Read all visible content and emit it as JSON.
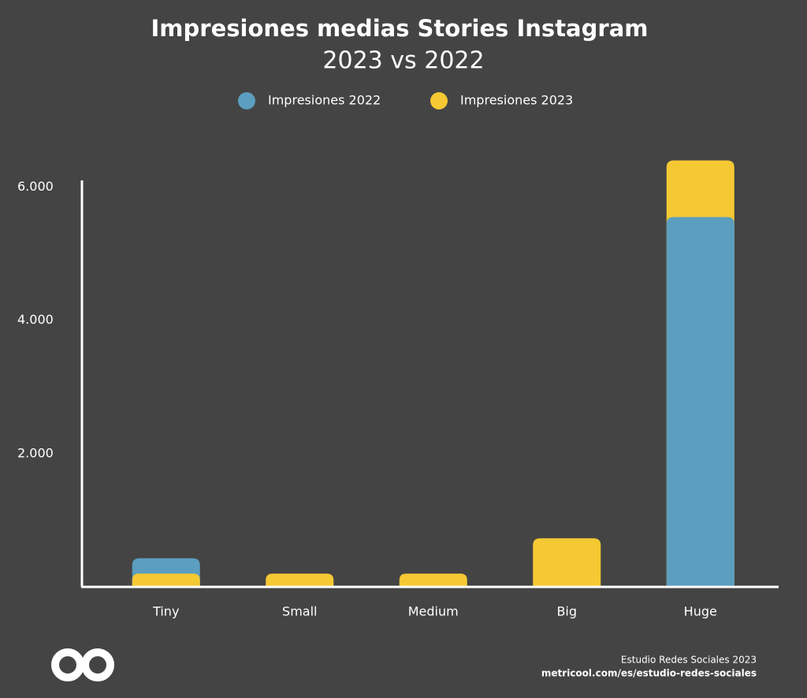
{
  "chart_data": {
    "type": "bar",
    "title": "Impresiones medias Stories Instagram",
    "subtitle": "2023 vs 2022",
    "categories": [
      "Tiny",
      "Small",
      "Medium",
      "Big",
      "Huge"
    ],
    "series": [
      {
        "name": "Impresiones 2022",
        "color": "#5b9ebf",
        "values": [
          430,
          null,
          null,
          null,
          5550
        ]
      },
      {
        "name": "Impresiones 2023",
        "color": "#f5c933",
        "values": [
          200,
          200,
          200,
          730,
          6400
        ]
      }
    ],
    "ylim": [
      0,
      6100
    ],
    "yticks": [
      {
        "value": 2000,
        "label": "2.000"
      },
      {
        "value": 4000,
        "label": "4.000"
      },
      {
        "value": 6000,
        "label": "6.000"
      }
    ],
    "footer": {
      "source": "Estudio Redes Sociales 2023",
      "url": "metricool.com/es/estudio-redes-sociales"
    }
  }
}
